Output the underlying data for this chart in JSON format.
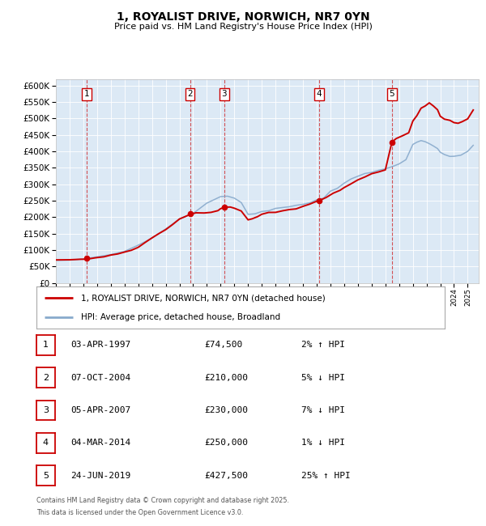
{
  "title": "1, ROYALIST DRIVE, NORWICH, NR7 0YN",
  "subtitle": "Price paid vs. HM Land Registry's House Price Index (HPI)",
  "ylim": [
    0,
    620000
  ],
  "yticks": [
    0,
    50000,
    100000,
    150000,
    200000,
    250000,
    300000,
    350000,
    400000,
    450000,
    500000,
    550000,
    600000
  ],
  "xlim_start": 1995.0,
  "xlim_end": 2025.8,
  "plot_bg": "#dce9f5",
  "red_line_color": "#cc0000",
  "blue_line_color": "#88aacc",
  "sale_points": [
    {
      "num": 1,
      "year": 1997.25,
      "price": 74500
    },
    {
      "num": 2,
      "year": 2004.77,
      "price": 210000
    },
    {
      "num": 3,
      "year": 2007.27,
      "price": 230000
    },
    {
      "num": 4,
      "year": 2014.17,
      "price": 250000
    },
    {
      "num": 5,
      "year": 2019.48,
      "price": 427500
    }
  ],
  "table_rows": [
    {
      "num": 1,
      "date": "03-APR-1997",
      "price": "£74,500",
      "hpi": "2% ↑ HPI"
    },
    {
      "num": 2,
      "date": "07-OCT-2004",
      "price": "£210,000",
      "hpi": "5% ↓ HPI"
    },
    {
      "num": 3,
      "date": "05-APR-2007",
      "price": "£230,000",
      "hpi": "7% ↓ HPI"
    },
    {
      "num": 4,
      "date": "04-MAR-2014",
      "price": "£250,000",
      "hpi": "1% ↓ HPI"
    },
    {
      "num": 5,
      "date": "24-JUN-2019",
      "price": "£427,500",
      "hpi": "25% ↑ HPI"
    }
  ],
  "legend_entries": [
    "1, ROYALIST DRIVE, NORWICH, NR7 0YN (detached house)",
    "HPI: Average price, detached house, Broadland"
  ],
  "footer_line1": "Contains HM Land Registry data © Crown copyright and database right 2025.",
  "footer_line2": "This data is licensed under the Open Government Licence v3.0."
}
